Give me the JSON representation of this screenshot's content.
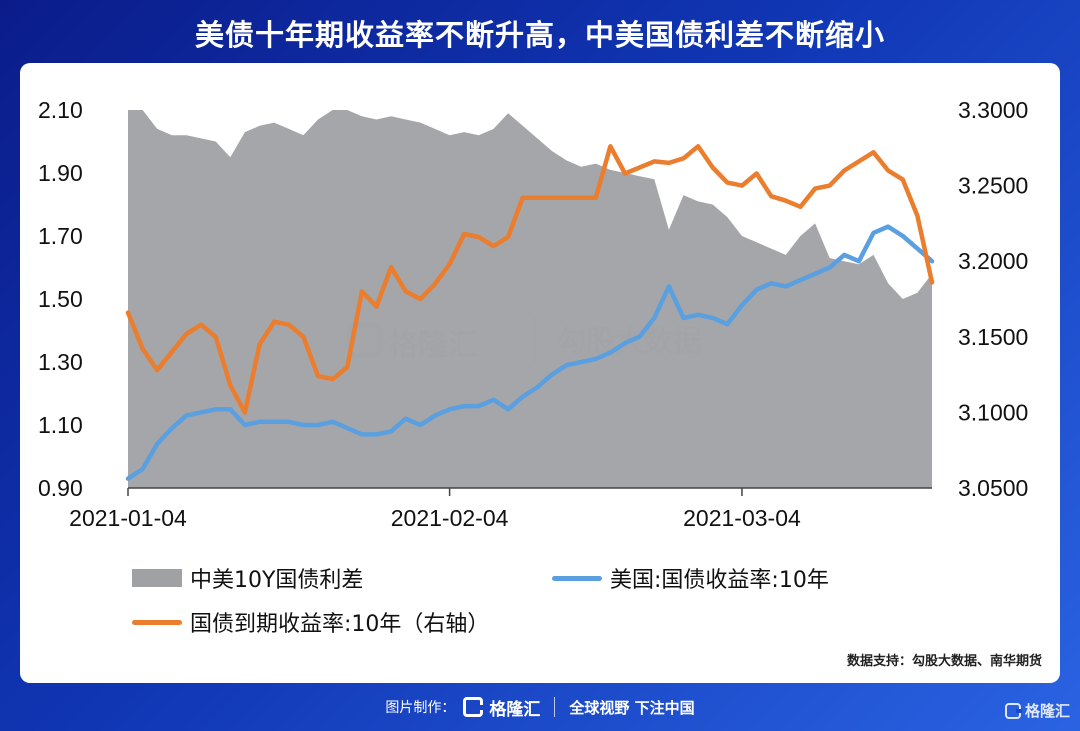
{
  "page": {
    "title": "美债十年期收益率不断升高，中美国债利差不断缩小",
    "source": "数据支持：勾股大数据、南华期货",
    "watermark_left": "格隆汇",
    "watermark_right": "勾股大数据",
    "footer_label": "图片制作：",
    "footer_brand": "格隆汇",
    "footer_slogan": "全球视野 下注中国",
    "corner_brand": "格隆汇"
  },
  "colors": {
    "area": "#a0a1a4",
    "us_line": "#5a9fe0",
    "cn_line": "#eb7d2e"
  },
  "chart_data": {
    "type": "combo",
    "title": "美债十年期收益率不断升高，中美国债利差不断缩小",
    "x_ticks": [
      "2021-01-04",
      "2021-02-04",
      "2021-03-04"
    ],
    "x_tick_index": [
      0,
      22,
      42
    ],
    "y_left": {
      "min": 0.9,
      "max": 2.1,
      "ticks": [
        "0.90",
        "1.10",
        "1.30",
        "1.50",
        "1.70",
        "1.90",
        "2.10"
      ]
    },
    "y_right": {
      "min": 3.05,
      "max": 3.3,
      "ticks": [
        "3.0500",
        "3.1000",
        "3.1500",
        "3.2000",
        "3.2500",
        "3.3000"
      ]
    },
    "n_points": 56,
    "legend_position": "bottom",
    "series": [
      {
        "name": "中美10Y国债利差",
        "type": "area",
        "axis": "left",
        "values": [
          2.1,
          2.1,
          2.04,
          2.02,
          2.02,
          2.01,
          2.0,
          1.95,
          2.03,
          2.05,
          2.06,
          2.04,
          2.02,
          2.07,
          2.1,
          2.1,
          2.08,
          2.07,
          2.08,
          2.07,
          2.06,
          2.04,
          2.02,
          2.03,
          2.02,
          2.04,
          2.09,
          2.05,
          2.01,
          1.97,
          1.94,
          1.92,
          1.93,
          1.91,
          1.9,
          1.89,
          1.88,
          1.72,
          1.83,
          1.81,
          1.8,
          1.76,
          1.7,
          1.68,
          1.66,
          1.64,
          1.7,
          1.74,
          1.63,
          1.62,
          1.61,
          1.64,
          1.55,
          1.5,
          1.52,
          1.58
        ]
      },
      {
        "name": "美国:国债收益率:10年",
        "type": "line",
        "axis": "left",
        "values": [
          0.93,
          0.96,
          1.04,
          1.09,
          1.13,
          1.14,
          1.15,
          1.15,
          1.1,
          1.11,
          1.11,
          1.11,
          1.1,
          1.1,
          1.11,
          1.09,
          1.07,
          1.07,
          1.08,
          1.12,
          1.1,
          1.13,
          1.15,
          1.16,
          1.16,
          1.18,
          1.15,
          1.19,
          1.22,
          1.26,
          1.29,
          1.3,
          1.31,
          1.33,
          1.36,
          1.38,
          1.44,
          1.54,
          1.44,
          1.45,
          1.44,
          1.42,
          1.48,
          1.53,
          1.55,
          1.54,
          1.56,
          1.58,
          1.6,
          1.64,
          1.62,
          1.71,
          1.73,
          1.7,
          1.66,
          1.62
        ]
      },
      {
        "name": "国债到期收益率:10年",
        "type": "line",
        "axis": "right",
        "values": [
          3.166,
          3.142,
          3.128,
          3.14,
          3.152,
          3.158,
          3.15,
          3.118,
          3.1,
          3.145,
          3.16,
          3.158,
          3.15,
          3.124,
          3.122,
          3.13,
          3.18,
          3.17,
          3.196,
          3.18,
          3.175,
          3.185,
          3.198,
          3.218,
          3.216,
          3.21,
          3.216,
          3.242,
          3.242,
          3.242,
          3.242,
          3.242,
          3.242,
          3.276,
          3.258,
          3.262,
          3.266,
          3.265,
          3.268,
          3.276,
          3.262,
          3.252,
          3.25,
          3.258,
          3.243,
          3.24,
          3.236,
          3.248,
          3.25,
          3.26,
          3.266,
          3.272,
          3.26,
          3.254,
          3.23,
          3.186
        ]
      }
    ]
  }
}
